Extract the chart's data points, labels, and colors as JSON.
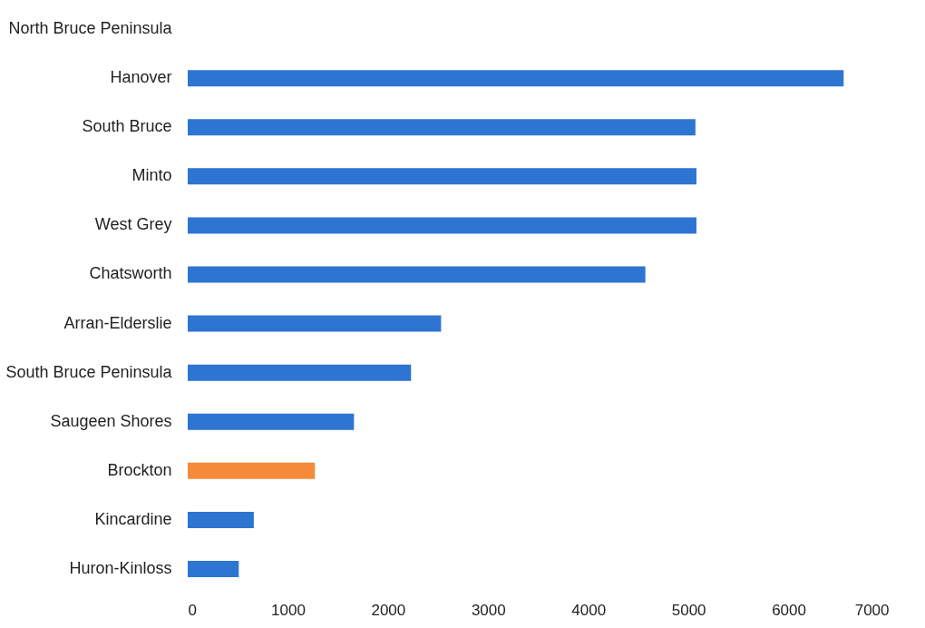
{
  "chart_data": {
    "type": "bar",
    "orientation": "horizontal",
    "categories": [
      "North Bruce Peninsula",
      "Hanover",
      "South Bruce",
      "Minto",
      "West Grey",
      "Chatsworth",
      "Arran-Elderslie",
      "South Bruce Peninsula",
      "Saugeen Shores",
      "Brockton",
      "Kincardine",
      "Huron-Kinloss"
    ],
    "values": [
      null,
      6550,
      5070,
      5080,
      5080,
      4570,
      2530,
      2230,
      1660,
      1270,
      660,
      510
    ],
    "colors": [
      "#2e75d2",
      "#2e75d2",
      "#2e75d2",
      "#2e75d2",
      "#2e75d2",
      "#2e75d2",
      "#2e75d2",
      "#2e75d2",
      "#2e75d2",
      "#f58b3a",
      "#2e75d2",
      "#2e75d2"
    ],
    "xlim": [
      0,
      7000
    ],
    "xticks": [
      0,
      1000,
      2000,
      3000,
      4000,
      5000,
      6000,
      7000
    ],
    "grid": false
  }
}
